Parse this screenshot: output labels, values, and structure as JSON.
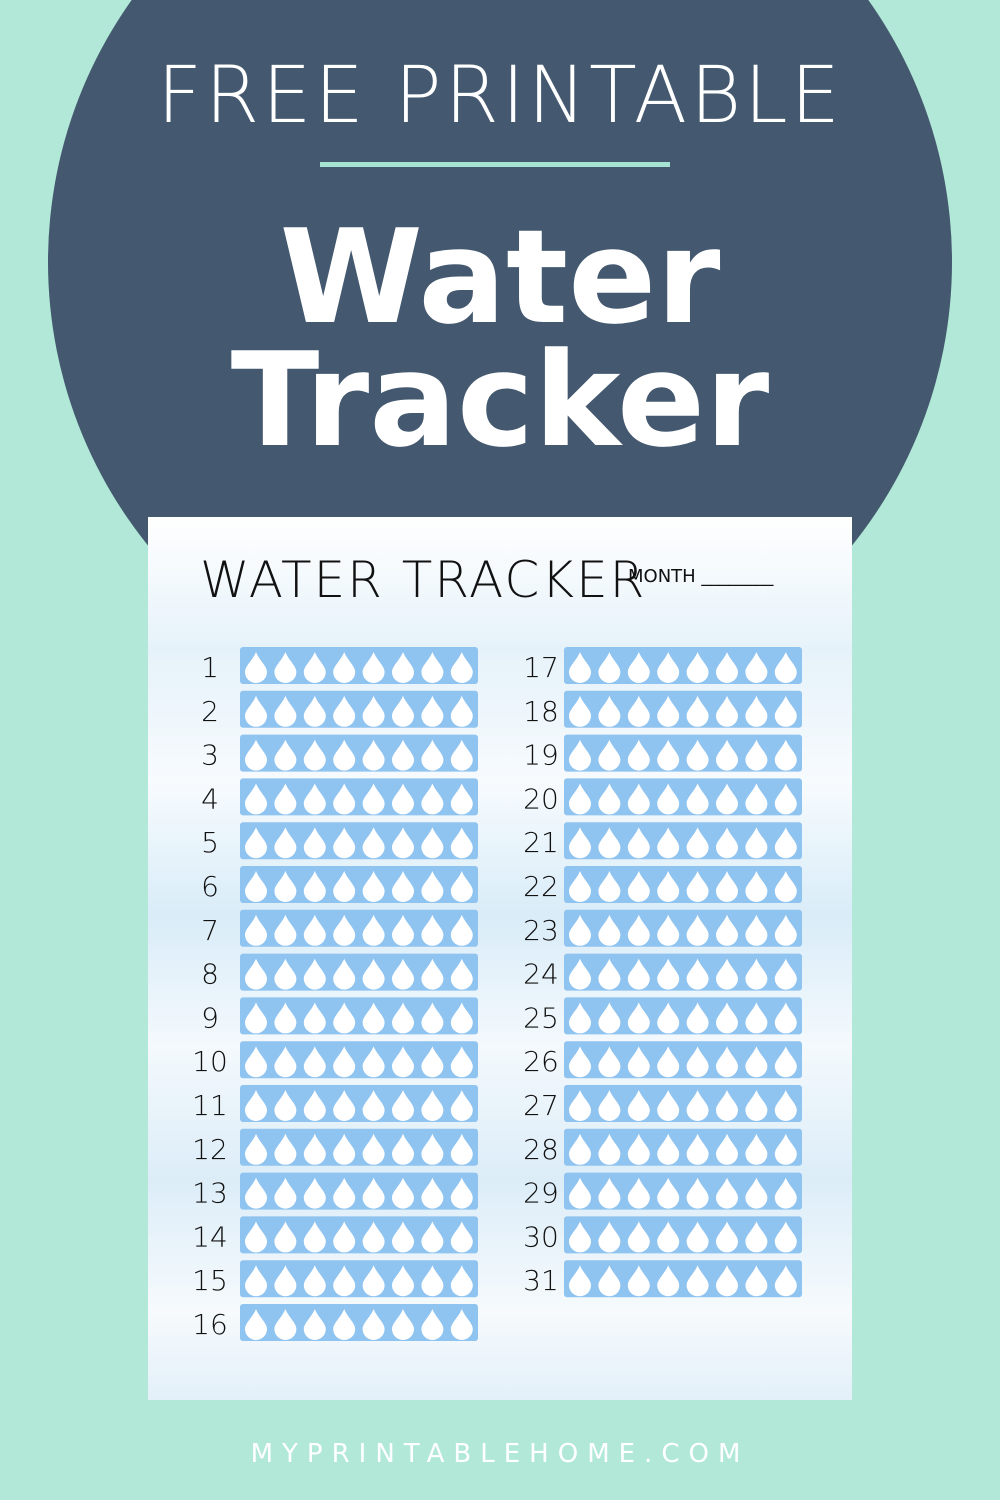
{
  "header": {
    "kicker": "FREE PRINTABLE",
    "title_line1": "Water",
    "title_line2": "Tracker"
  },
  "tracker": {
    "title": "WATER TRACKER",
    "month_label": "MONTH ________",
    "days": [
      1,
      2,
      3,
      4,
      5,
      6,
      7,
      8,
      9,
      10,
      11,
      12,
      13,
      14,
      15,
      16,
      17,
      18,
      19,
      20,
      21,
      22,
      23,
      24,
      25,
      26,
      27,
      28,
      29,
      30,
      31
    ]
  },
  "footer": {
    "site": "MYPRINTABLEHOME.COM"
  }
}
